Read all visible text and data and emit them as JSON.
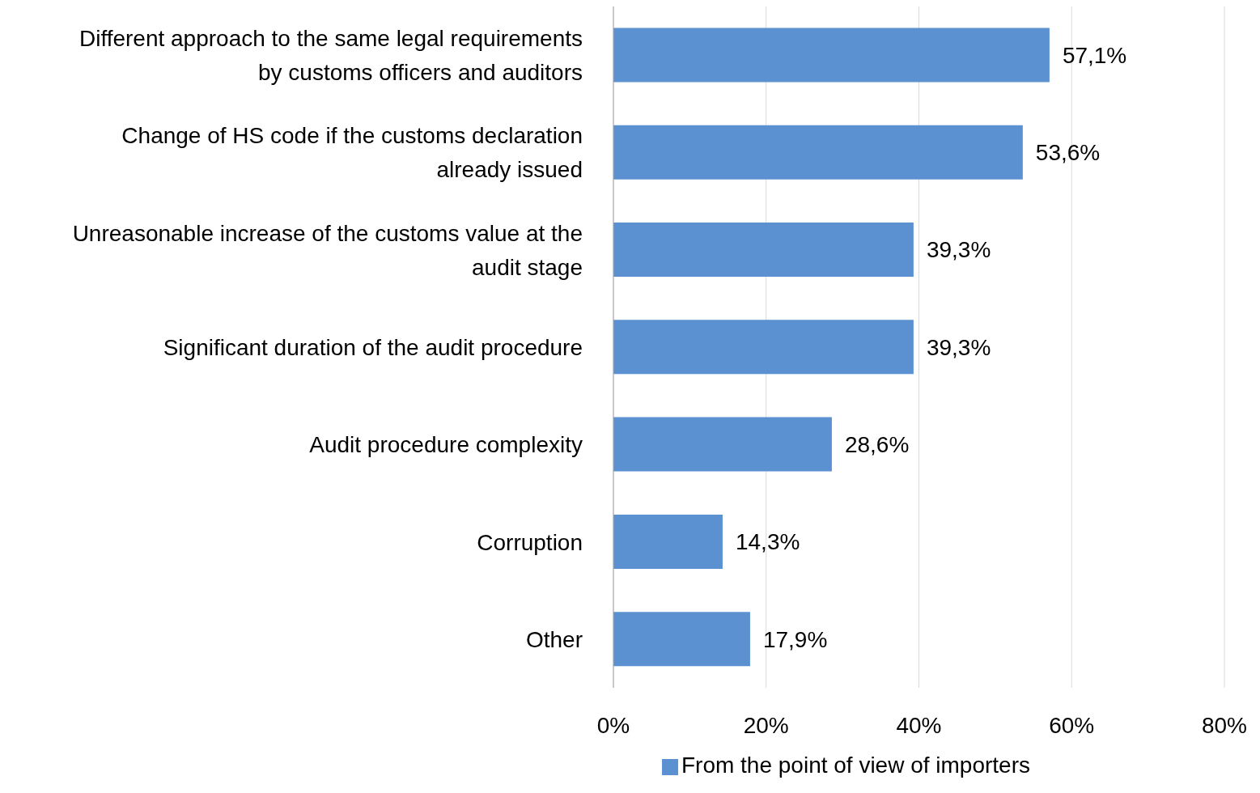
{
  "chart_data": {
    "type": "bar",
    "orientation": "horizontal",
    "categories": [
      "Different approach to the same legal requirements by customs officers and auditors",
      "Change of HS code if the customs declaration already issued",
      "Unreasonable increase of the customs value at the audit stage",
      "Significant duration of the audit procedure",
      "Audit procedure complexity",
      "Corruption",
      "Other"
    ],
    "series": [
      {
        "name": "From the point of view of importers",
        "color": "#5b91d1",
        "values": [
          57.1,
          53.6,
          39.3,
          39.3,
          28.6,
          14.3,
          17.9
        ],
        "value_labels": [
          "57,1%",
          "53,6%",
          "39,3%",
          "39,3%",
          "28,6%",
          "14,3%",
          "17,9%"
        ]
      }
    ],
    "xlim": [
      0,
      80
    ],
    "xticks": [
      {
        "value": 0,
        "label": "0%"
      },
      {
        "value": 20,
        "label": "20%"
      },
      {
        "value": 40,
        "label": "40%"
      },
      {
        "value": 60,
        "label": "60%"
      },
      {
        "value": 80,
        "label": "80%"
      }
    ],
    "grid": "x",
    "legend": "bottom"
  }
}
